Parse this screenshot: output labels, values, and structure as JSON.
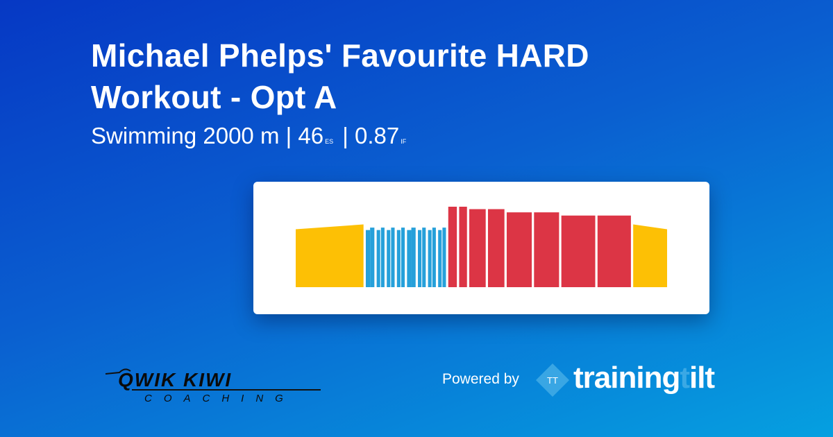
{
  "header": {
    "title": "Michael Phelps' Favourite HARD Workout - Opt A",
    "sport": "Swimming",
    "distance": "2000 m",
    "sep": "|",
    "es_value": "46",
    "es_label": "ES",
    "if_value": "0.87",
    "if_label": "IF"
  },
  "colors": {
    "warmup": "#fdc005",
    "aerobic": "#26a0da",
    "hard": "#dc3545"
  },
  "chart_data": {
    "type": "bar",
    "title": "",
    "xlabel": "",
    "ylabel": "",
    "segments": [
      {
        "zone": "warmup",
        "duration": 268,
        "intensity_start": 0.72,
        "intensity_end": 0.78
      },
      {
        "zone": "aerobic",
        "duration": 17,
        "intensity": 0.71
      },
      {
        "zone": "aerobic",
        "duration": 17,
        "intensity": 0.74,
        "gap": 0
      },
      {
        "zone": "aerobic",
        "duration": 14,
        "intensity": 0.71
      },
      {
        "zone": "aerobic",
        "duration": 14,
        "intensity": 0.74,
        "gap": 3
      },
      {
        "zone": "aerobic",
        "duration": 14,
        "intensity": 0.71
      },
      {
        "zone": "aerobic",
        "duration": 14,
        "intensity": 0.74,
        "gap": 3
      },
      {
        "zone": "aerobic",
        "duration": 14,
        "intensity": 0.71
      },
      {
        "zone": "aerobic",
        "duration": 14,
        "intensity": 0.74,
        "gap": 3
      },
      {
        "zone": "aerobic",
        "duration": 17,
        "intensity": 0.71
      },
      {
        "zone": "aerobic",
        "duration": 17,
        "intensity": 0.74,
        "gap": 0
      },
      {
        "zone": "aerobic",
        "duration": 14,
        "intensity": 0.71
      },
      {
        "zone": "aerobic",
        "duration": 14,
        "intensity": 0.74,
        "gap": 3
      },
      {
        "zone": "aerobic",
        "duration": 14,
        "intensity": 0.71
      },
      {
        "zone": "aerobic",
        "duration": 14,
        "intensity": 0.74,
        "gap": 3
      },
      {
        "zone": "aerobic",
        "duration": 14,
        "intensity": 0.71
      },
      {
        "zone": "aerobic",
        "duration": 14,
        "intensity": 0.74,
        "gap": 3
      },
      {
        "zone": "hard",
        "duration": 34,
        "intensity": 1.0
      },
      {
        "zone": "hard",
        "duration": 31,
        "intensity": 1.0
      },
      {
        "zone": "hard",
        "duration": 65,
        "intensity": 0.97
      },
      {
        "zone": "hard",
        "duration": 65,
        "intensity": 0.97
      },
      {
        "zone": "hard",
        "duration": 99,
        "intensity": 0.93
      },
      {
        "zone": "hard",
        "duration": 99,
        "intensity": 0.93
      },
      {
        "zone": "hard",
        "duration": 134,
        "intensity": 0.89
      },
      {
        "zone": "hard",
        "duration": 132,
        "intensity": 0.89
      },
      {
        "zone": "warmup",
        "duration": 134,
        "intensity_start": 0.78,
        "intensity_end": 0.72
      }
    ]
  },
  "footer": {
    "coach_logo": "QWIK KIWI COACHING",
    "powered_by": "Powered by",
    "tt_mark": "TT",
    "brand_part1": "training",
    "brand_part2": "t",
    "brand_part3": "ilt"
  }
}
